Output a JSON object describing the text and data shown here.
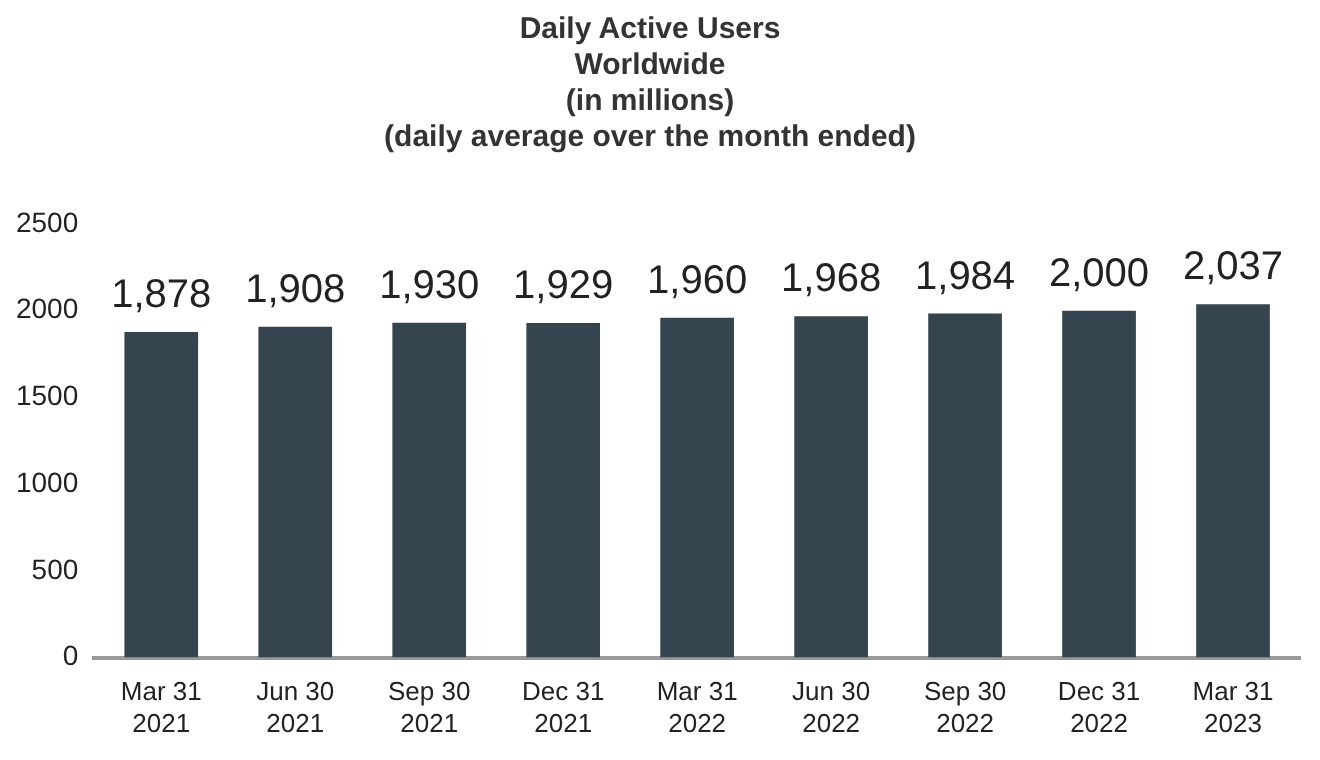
{
  "chart_data": {
    "type": "bar",
    "title": "Daily Active Users\nWorldwide\n(in millions)\n(daily average over the month ended)",
    "categories": [
      "Mar 31\n2021",
      "Jun 30\n2021",
      "Sep 30\n2021",
      "Dec 31\n2021",
      "Mar 31\n2022",
      "Jun 30\n2022",
      "Sep 30\n2022",
      "Dec 31\n2022",
      "Mar 31\n2023"
    ],
    "values": [
      1878,
      1908,
      1930,
      1929,
      1960,
      1968,
      1984,
      2000,
      2037
    ],
    "value_labels": [
      "1,878",
      "1,908",
      "1,930",
      "1,929",
      "1,960",
      "1,968",
      "1,984",
      "2,000",
      "2,037"
    ],
    "color": "#34454f",
    "ylim": [
      0,
      2500
    ],
    "yticks": [
      0,
      500,
      1000,
      1500,
      2000,
      2500
    ],
    "grid": false,
    "legend": false
  }
}
